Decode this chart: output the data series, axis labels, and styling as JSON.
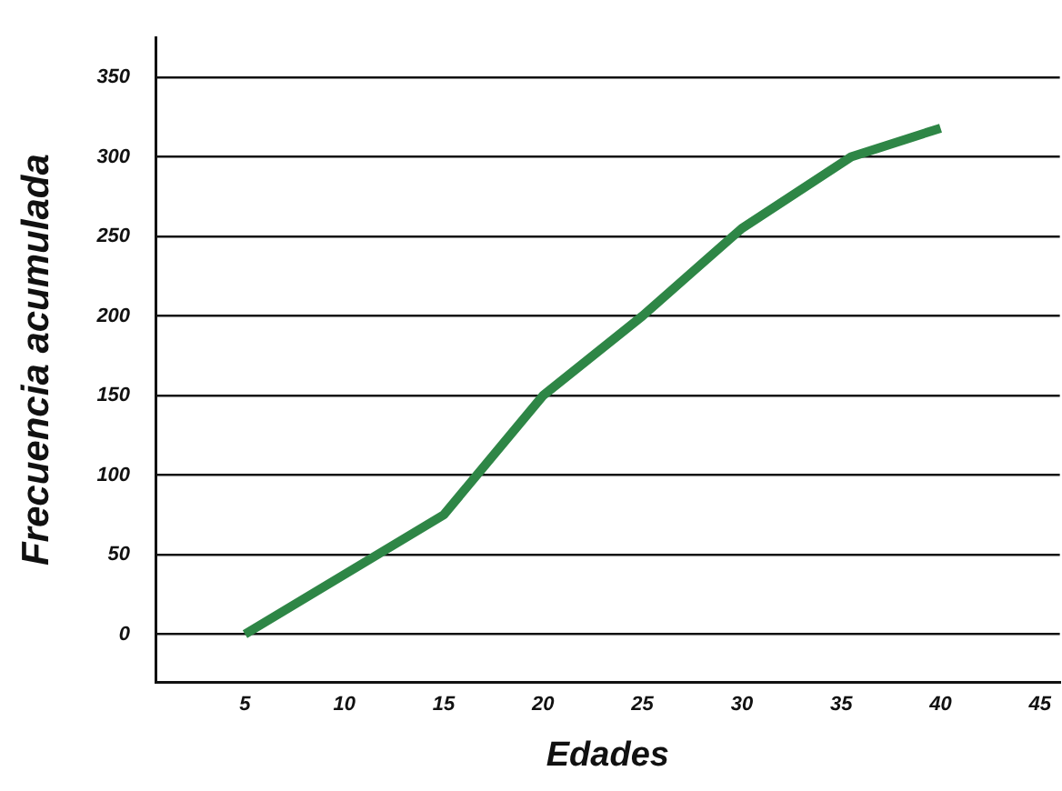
{
  "chart_data": {
    "type": "line",
    "xlabel": "Edades",
    "ylabel": "Frecuencia acumulada",
    "x": [
      5,
      15,
      20,
      25,
      30,
      35.5,
      40
    ],
    "series": [
      {
        "color": "#2e8646",
        "values": [
          0,
          75,
          150,
          200,
          255,
          300,
          318
        ]
      }
    ],
    "xlim": [
      0.5,
      46
    ],
    "xticks": [
      5,
      10,
      15,
      20,
      25,
      30,
      35,
      40,
      45
    ],
    "ylim": [
      -30,
      375
    ],
    "yticks": [
      0,
      50,
      100,
      150,
      200,
      250,
      300,
      350
    ],
    "grid": "y",
    "legend": false,
    "marker": "none",
    "line_style": "solid"
  }
}
